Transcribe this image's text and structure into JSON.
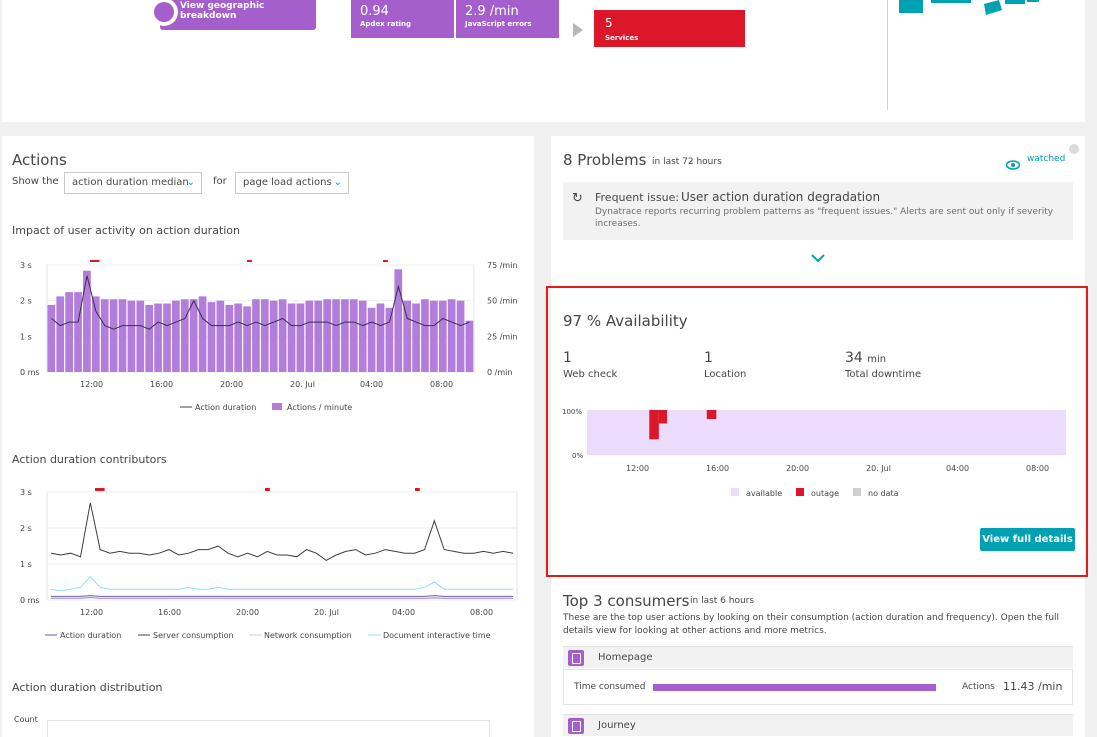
{
  "top": {
    "geo_button_label": "View geographic breakdown",
    "tiles": [
      {
        "value": "0.94",
        "label": "Apdex rating"
      },
      {
        "value": "2.9 /min",
        "label": "JavaScript errors"
      }
    ],
    "services_tile": {
      "value": "5",
      "label": "Services"
    }
  },
  "actions": {
    "title": "Actions",
    "show_the_label": "Show the",
    "metric_select": "action duration median",
    "for_label": "for",
    "type_select": "page load actions",
    "impact_title": "Impact of user activity on action duration",
    "contributors_title": "Action duration contributors",
    "distribution_title": "Action duration distribution",
    "distribution_ylabel": "Count"
  },
  "impact_chart": {
    "y_left_ticks": [
      "0 ms",
      "1 s",
      "2 s",
      "3 s"
    ],
    "y_right_ticks": [
      "0 /min",
      "25 /min",
      "50 /min",
      "75 /min"
    ],
    "x_ticks": [
      "12:00",
      "16:00",
      "20:00",
      "20. Jul",
      "04:00",
      "08:00"
    ],
    "legend": [
      "Action duration",
      "Actions / minute"
    ]
  },
  "contrib_chart": {
    "y_ticks": [
      "0 ms",
      "1 s",
      "2 s",
      "3 s"
    ],
    "x_ticks": [
      "12:00",
      "16:00",
      "20:00",
      "20. Jul",
      "04:00",
      "08:00"
    ],
    "legend": [
      "Action duration",
      "Server consumption",
      "Network consumption",
      "Document interactive time"
    ]
  },
  "problems": {
    "count_title": "8 Problems",
    "timeframe": "in last 72 hours",
    "watched_label": "watched",
    "issue_prefix": "Frequent issue:",
    "issue_title": "User action duration degradation",
    "issue_desc_1": "Dynatrace reports recurring problem patterns as \"frequent issues.\" Alerts are sent out only if severity",
    "issue_desc_2": "increases."
  },
  "availability": {
    "title": "97 % Availability",
    "stats": [
      {
        "value": "1",
        "unit": "",
        "label": "Web check"
      },
      {
        "value": "1",
        "unit": "",
        "label": "Location"
      },
      {
        "value": "34",
        "unit": "min",
        "label": "Total downtime"
      }
    ],
    "y_ticks": [
      "100%",
      "0%"
    ],
    "x_ticks": [
      "12:00",
      "16:00",
      "20:00",
      "20. Jul",
      "04:00",
      "08:00"
    ],
    "legend": [
      "available",
      "outage",
      "no data"
    ],
    "button_label": "View full details"
  },
  "consumers": {
    "title": "Top 3 consumers",
    "timeframe": "in last 6 hours",
    "desc_1": "These are the top user actions by looking on their consumption (action duration and frequency). Open the full",
    "desc_2": "details view for looking at other actions and more metrics.",
    "items": [
      {
        "name": "Homepage",
        "time_label": "Time consumed",
        "actions_label": "Actions",
        "actions_value": "11.43 /min"
      },
      {
        "name": "Journey"
      }
    ]
  },
  "colors": {
    "purple": "#a45fcc",
    "bar_purple": "#b37ddb",
    "red": "#dc172a",
    "teal": "#00a1b2",
    "avail": "#ecdcfb"
  },
  "chart_data": [
    {
      "type": "bar",
      "series": [
        {
          "name": "Actions / minute",
          "values": [
            47,
            53,
            56,
            56,
            71,
            53,
            51,
            51,
            51,
            50,
            50,
            47,
            48,
            48,
            50,
            51,
            51,
            53,
            49,
            50,
            47,
            48,
            46,
            51,
            51,
            50,
            51,
            48,
            48,
            50,
            50,
            51,
            51,
            51,
            51,
            50,
            45,
            48,
            45,
            72,
            50,
            48,
            51,
            50,
            50,
            51,
            50,
            36
          ]
        },
        {
          "name": "Action duration",
          "values": [
            1.5,
            1.3,
            1.4,
            1.4,
            2.7,
            1.7,
            1.3,
            1.2,
            1.3,
            1.3,
            1.3,
            1.2,
            1.4,
            1.3,
            1.4,
            1.5,
            2.0,
            1.5,
            1.3,
            1.3,
            1.3,
            1.4,
            1.3,
            1.4,
            1.3,
            1.4,
            1.5,
            1.3,
            1.3,
            1.4,
            1.4,
            1.4,
            1.3,
            1.4,
            1.4,
            1.3,
            1.4,
            1.3,
            1.4,
            2.4,
            1.5,
            1.4,
            1.3,
            1.3,
            1.5,
            1.4,
            1.3,
            1.4
          ]
        }
      ]
    },
    {
      "type": "line",
      "series": [
        {
          "name": "Action duration",
          "values": [
            1.3,
            1.25,
            1.3,
            1.2,
            2.7,
            1.4,
            1.3,
            1.35,
            1.3,
            1.3,
            1.25,
            1.3,
            1.4,
            1.25,
            1.3,
            1.4,
            1.4,
            1.5,
            1.3,
            1.2,
            1.3,
            1.2,
            1.35,
            1.25,
            1.25,
            1.2,
            1.4,
            1.3,
            1.1,
            1.25,
            1.35,
            1.4,
            1.25,
            1.3,
            1.4,
            1.35,
            1.3,
            1.3,
            1.4,
            2.2,
            1.4,
            1.35,
            1.3,
            1.3,
            1.35,
            1.3,
            1.35,
            1.3
          ]
        },
        {
          "name": "Network consumption",
          "values": [
            0.3,
            0.25,
            0.3,
            0.35,
            0.65,
            0.35,
            0.3,
            0.3,
            0.3,
            0.3,
            0.3,
            0.3,
            0.3,
            0.3,
            0.35,
            0.3,
            0.3,
            0.35,
            0.3,
            0.3,
            0.3,
            0.3,
            0.3,
            0.3,
            0.3,
            0.3,
            0.3,
            0.3,
            0.3,
            0.3,
            0.3,
            0.3,
            0.3,
            0.3,
            0.3,
            0.3,
            0.3,
            0.3,
            0.35,
            0.5,
            0.3,
            0.3,
            0.3,
            0.3,
            0.3,
            0.3,
            0.3,
            0.3
          ]
        },
        {
          "name": "Server consumption",
          "values": [
            0.1,
            0.1,
            0.1,
            0.1,
            0.12,
            0.1,
            0.1,
            0.1,
            0.1,
            0.1,
            0.1,
            0.1,
            0.1,
            0.1,
            0.1,
            0.1,
            0.1,
            0.1,
            0.1,
            0.1,
            0.1,
            0.1,
            0.1,
            0.1,
            0.1,
            0.1,
            0.1,
            0.1,
            0.1,
            0.1,
            0.1,
            0.1,
            0.1,
            0.1,
            0.1,
            0.1,
            0.1,
            0.1,
            0.1,
            0.12,
            0.1,
            0.1,
            0.1,
            0.1,
            0.1,
            0.1,
            0.1,
            0.1
          ]
        },
        {
          "name": "Document interactive time",
          "values": [
            0.05,
            0.05,
            0.05,
            0.05,
            0.07,
            0.05,
            0.05,
            0.05,
            0.05,
            0.05,
            0.05,
            0.05,
            0.05,
            0.05,
            0.05,
            0.05,
            0.05,
            0.05,
            0.05,
            0.05,
            0.05,
            0.05,
            0.05,
            0.05,
            0.05,
            0.05,
            0.05,
            0.05,
            0.05,
            0.05,
            0.05,
            0.05,
            0.05,
            0.05,
            0.05,
            0.05,
            0.05,
            0.05,
            0.05,
            0.06,
            0.05,
            0.05,
            0.05,
            0.05,
            0.05,
            0.05,
            0.05,
            0.05
          ]
        }
      ]
    },
    {
      "type": "area",
      "series": [
        {
          "name": "available",
          "range": [
            0,
            100
          ]
        },
        {
          "name": "outage",
          "segments": [
            {
              "from": 0.13,
              "to": 0.15,
              "low": 35
            },
            {
              "from": 0.15,
              "to": 0.167,
              "low": 70
            },
            {
              "from": 0.25,
              "to": 0.27,
              "low": 80
            }
          ]
        }
      ]
    }
  ]
}
